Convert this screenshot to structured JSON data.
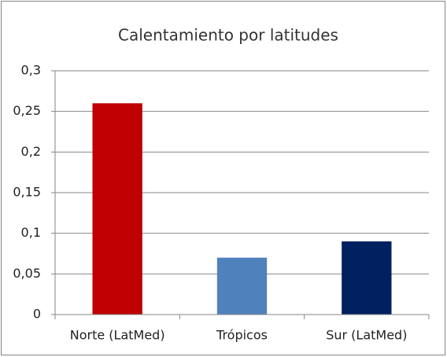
{
  "chart_data": {
    "type": "bar",
    "title": "Calentamiento por latitudes",
    "categories": [
      "Norte (LatMed)",
      "Trópicos",
      "Sur (LatMed)"
    ],
    "values": [
      0.26,
      0.07,
      0.09
    ],
    "colors": [
      "#c00000",
      "#4f81bd",
      "#002060"
    ],
    "ylim": [
      0,
      0.3
    ],
    "yticks": [
      0,
      {
        "value": 0.05,
        "label": "0,05"
      },
      {
        "value": 0.1,
        "label": "0,1"
      },
      {
        "value": 0.15,
        "label": "0,15"
      },
      {
        "value": 0.2,
        "label": "0,2"
      },
      {
        "value": 0.25,
        "label": "0,25"
      },
      {
        "value": 0.3,
        "label": "0,3"
      }
    ],
    "grid": true
  }
}
